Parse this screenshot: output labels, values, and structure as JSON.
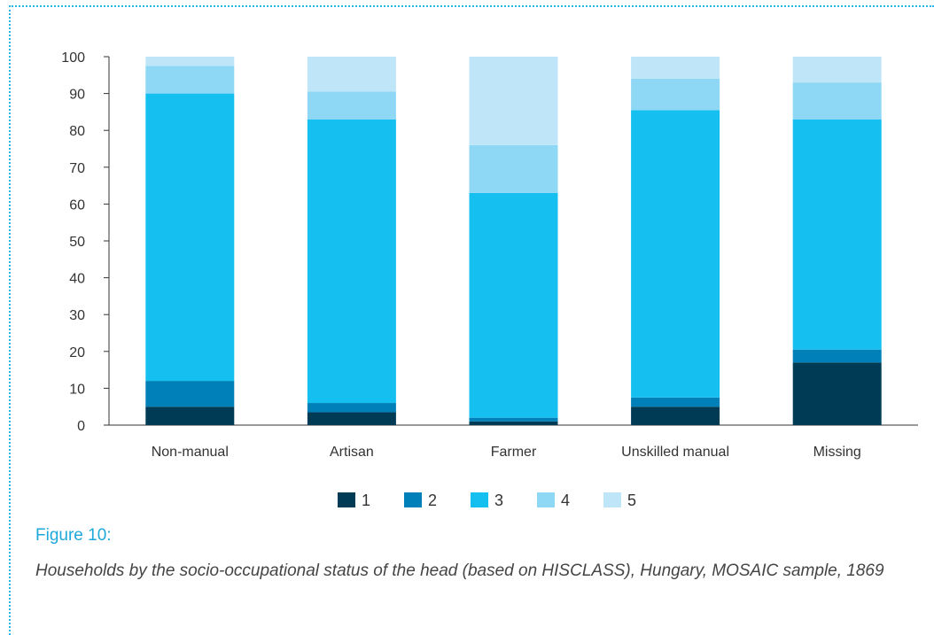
{
  "figure": {
    "label": "Figure 10:",
    "caption": "Households by the socio-occupational status of the head (based on HISCLASS), Hungary, MOSAIC sample, 1869"
  },
  "chart_data": {
    "type": "bar",
    "stacked": true,
    "title": "",
    "xlabel": "",
    "ylabel": "",
    "ylim": [
      0,
      100
    ],
    "yticks": [
      0,
      10,
      20,
      30,
      40,
      50,
      60,
      70,
      80,
      90,
      100
    ],
    "grid": false,
    "legend_position": "bottom",
    "categories": [
      "Non-manual",
      "Artisan",
      "Farmer",
      "Unskilled manual",
      "Missing"
    ],
    "series": [
      {
        "name": "1",
        "color": "#003b56",
        "values": [
          5,
          3.5,
          1,
          5,
          17
        ]
      },
      {
        "name": "2",
        "color": "#0080b8",
        "values": [
          7,
          2.5,
          1,
          2.5,
          3.5
        ]
      },
      {
        "name": "3",
        "color": "#15c0f0",
        "values": [
          78,
          77,
          61,
          78,
          62.5
        ]
      },
      {
        "name": "4",
        "color": "#8fd8f5",
        "values": [
          7.5,
          7.5,
          13,
          8.5,
          10
        ]
      },
      {
        "name": "5",
        "color": "#bfe6f8",
        "values": [
          2.5,
          9.5,
          24,
          6,
          7
        ]
      }
    ]
  }
}
